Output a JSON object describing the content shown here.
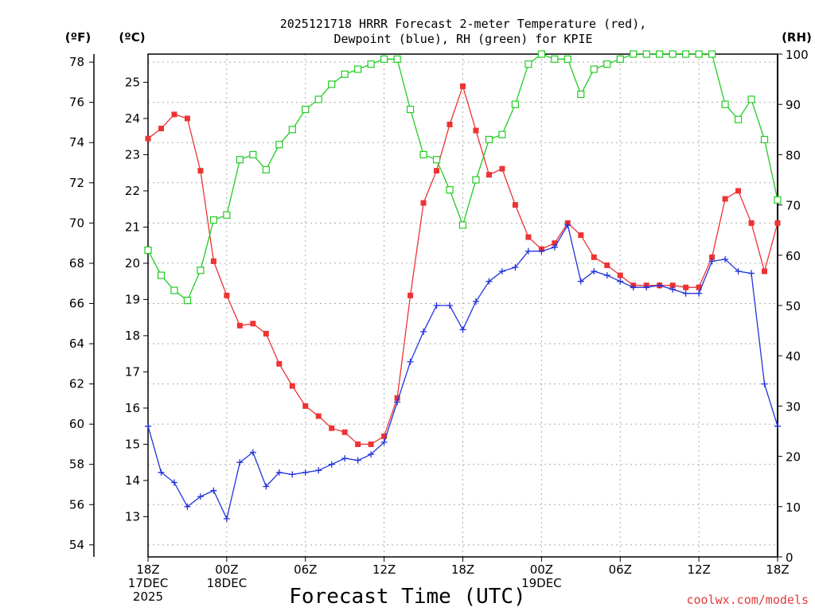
{
  "chart_data": {
    "type": "line",
    "title_lines": [
      "2025121718 HRRR Forecast 2-meter Temperature (red),",
      "Dewpoint (blue), RH (green) for KPIE"
    ],
    "xlabel": "Forecast Time (UTC)",
    "credit": "coolwx.com/models",
    "units": {
      "f": "(ºF)",
      "c": "(ºC)",
      "rh": "(RH)"
    },
    "x_ticks": [
      {
        "hour": 0,
        "lines": [
          "18Z",
          "17DEC",
          "2025"
        ]
      },
      {
        "hour": 6,
        "lines": [
          "00Z",
          "18DEC"
        ]
      },
      {
        "hour": 12,
        "lines": [
          "06Z"
        ]
      },
      {
        "hour": 18,
        "lines": [
          "12Z"
        ]
      },
      {
        "hour": 24,
        "lines": [
          "18Z"
        ]
      },
      {
        "hour": 30,
        "lines": [
          "00Z",
          "19DEC"
        ]
      },
      {
        "hour": 36,
        "lines": [
          "06Z"
        ]
      },
      {
        "hour": 42,
        "lines": [
          "12Z"
        ]
      },
      {
        "hour": 48,
        "lines": [
          "18Z"
        ]
      }
    ],
    "xlim_hours": [
      0,
      48
    ],
    "left_f_axis": {
      "ticks": [
        54,
        56,
        58,
        60,
        62,
        64,
        66,
        68,
        70,
        72,
        74,
        76,
        78
      ],
      "ylim": [
        53.4,
        78.4
      ]
    },
    "left_c_axis": {
      "ticks": [
        13,
        14,
        15,
        16,
        17,
        18,
        19,
        20,
        21,
        22,
        23,
        24,
        25
      ]
    },
    "right_rh_axis": {
      "ticks": [
        0,
        10,
        20,
        30,
        40,
        50,
        60,
        70,
        80,
        90,
        100
      ],
      "ylim": [
        0,
        100
      ]
    },
    "series": [
      {
        "name": "Temperature",
        "unit": "F",
        "color": "#ee3333",
        "marker": "filled-square",
        "values": [
          74.2,
          74.7,
          75.4,
          75.2,
          72.6,
          68.1,
          66.4,
          64.9,
          65.0,
          64.5,
          63.0,
          61.9,
          60.9,
          60.4,
          59.8,
          59.6,
          59.0,
          59.0,
          59.4,
          61.3,
          66.4,
          71.0,
          72.6,
          74.9,
          76.8,
          74.6,
          72.4,
          72.7,
          70.9,
          69.3,
          68.7,
          69.0,
          70.0,
          69.4,
          68.3,
          67.9,
          67.4,
          66.9,
          66.9,
          66.9,
          66.9,
          66.8,
          66.8,
          68.3,
          71.2,
          71.6,
          70.0,
          67.6,
          70.0
        ]
      },
      {
        "name": "Dewpoint",
        "unit": "F",
        "color": "#2233dd",
        "marker": "plus",
        "values": [
          59.9,
          57.6,
          57.1,
          55.9,
          56.4,
          56.7,
          55.3,
          58.1,
          58.6,
          56.9,
          57.6,
          57.5,
          57.6,
          57.7,
          58.0,
          58.3,
          58.2,
          58.5,
          59.1,
          61.1,
          63.1,
          64.6,
          65.9,
          65.9,
          64.7,
          66.1,
          67.1,
          67.6,
          67.8,
          68.6,
          68.6,
          68.8,
          69.9,
          67.1,
          67.6,
          67.4,
          67.1,
          66.8,
          66.8,
          66.9,
          66.7,
          66.5,
          66.5,
          68.1,
          68.2,
          67.6,
          67.5,
          62.0,
          59.9
        ]
      },
      {
        "name": "RH",
        "unit": "%",
        "color": "#22cc22",
        "marker": "open-square",
        "values": [
          61,
          56,
          53,
          51,
          57,
          67,
          68,
          79,
          80,
          77,
          82,
          85,
          89,
          91,
          94,
          96,
          97,
          98,
          99,
          99,
          89,
          80,
          79,
          73,
          66,
          75,
          83,
          84,
          90,
          98,
          100,
          99,
          99,
          92,
          97,
          98,
          99,
          100,
          100,
          100,
          100,
          100,
          100,
          100,
          90,
          87,
          91,
          83,
          71
        ]
      }
    ]
  }
}
